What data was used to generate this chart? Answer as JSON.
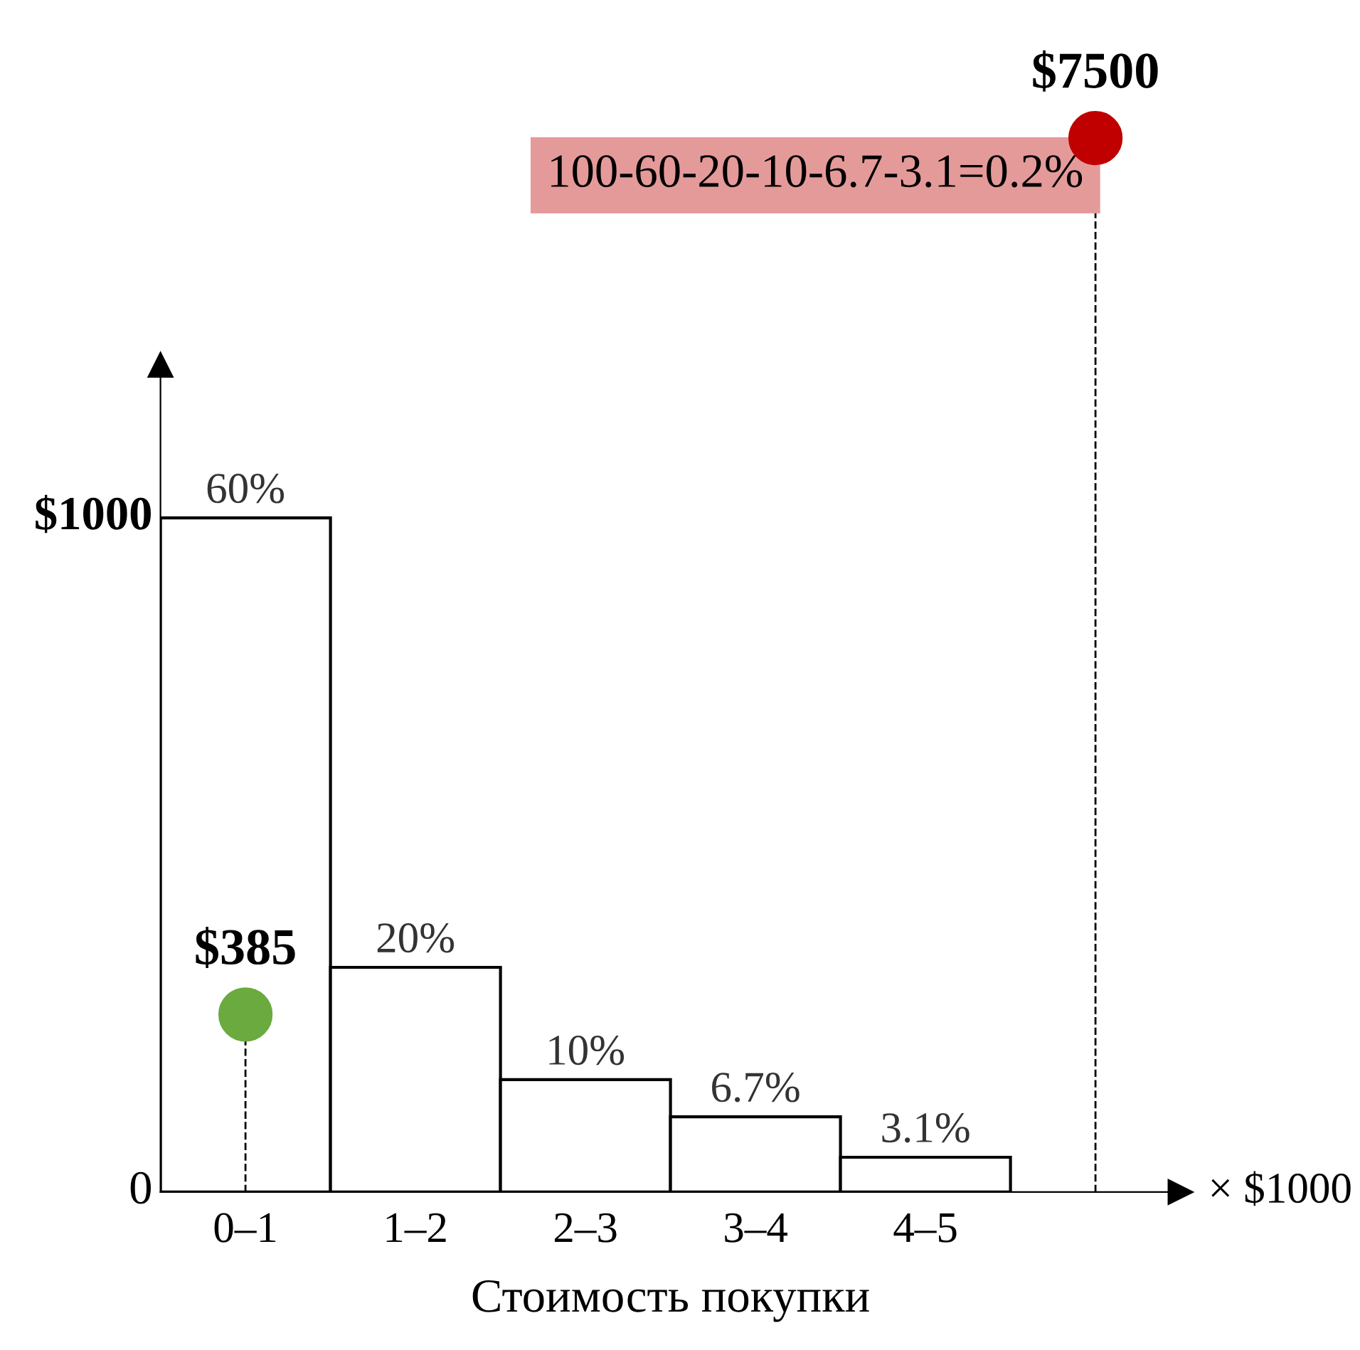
{
  "chart_data": {
    "type": "bar",
    "categories": [
      "0–1",
      "1–2",
      "2–3",
      "3–4",
      "4–5",
      null
    ],
    "values": [
      60,
      20,
      10,
      6.7,
      3.1,
      null
    ],
    "value_labels": [
      "60%",
      "20%",
      "10%",
      "6.7%",
      "3.1%",
      null
    ],
    "color": "#ffffff",
    "series": [
      {
        "type": "lollipop",
        "values": [
          15.8,
          null,
          null,
          null,
          null,
          93.8
        ],
        "colors": [
          "#6aaa3f",
          null,
          null,
          null,
          null,
          "#c00000"
        ],
        "marker": "circle",
        "line_style": "dashed"
      }
    ],
    "tick_labels": "x",
    "xlabel": "Стоимость покупки",
    "annotations": [
      "0",
      "$1000",
      {
        "text": "$385",
        "x": "0–1",
        "y": 15.8
      },
      {
        "text": "$7500",
        "y": 93.8
      },
      "100-60-20-10-6.7-3.1=0.2%",
      "× $1000"
    ]
  }
}
